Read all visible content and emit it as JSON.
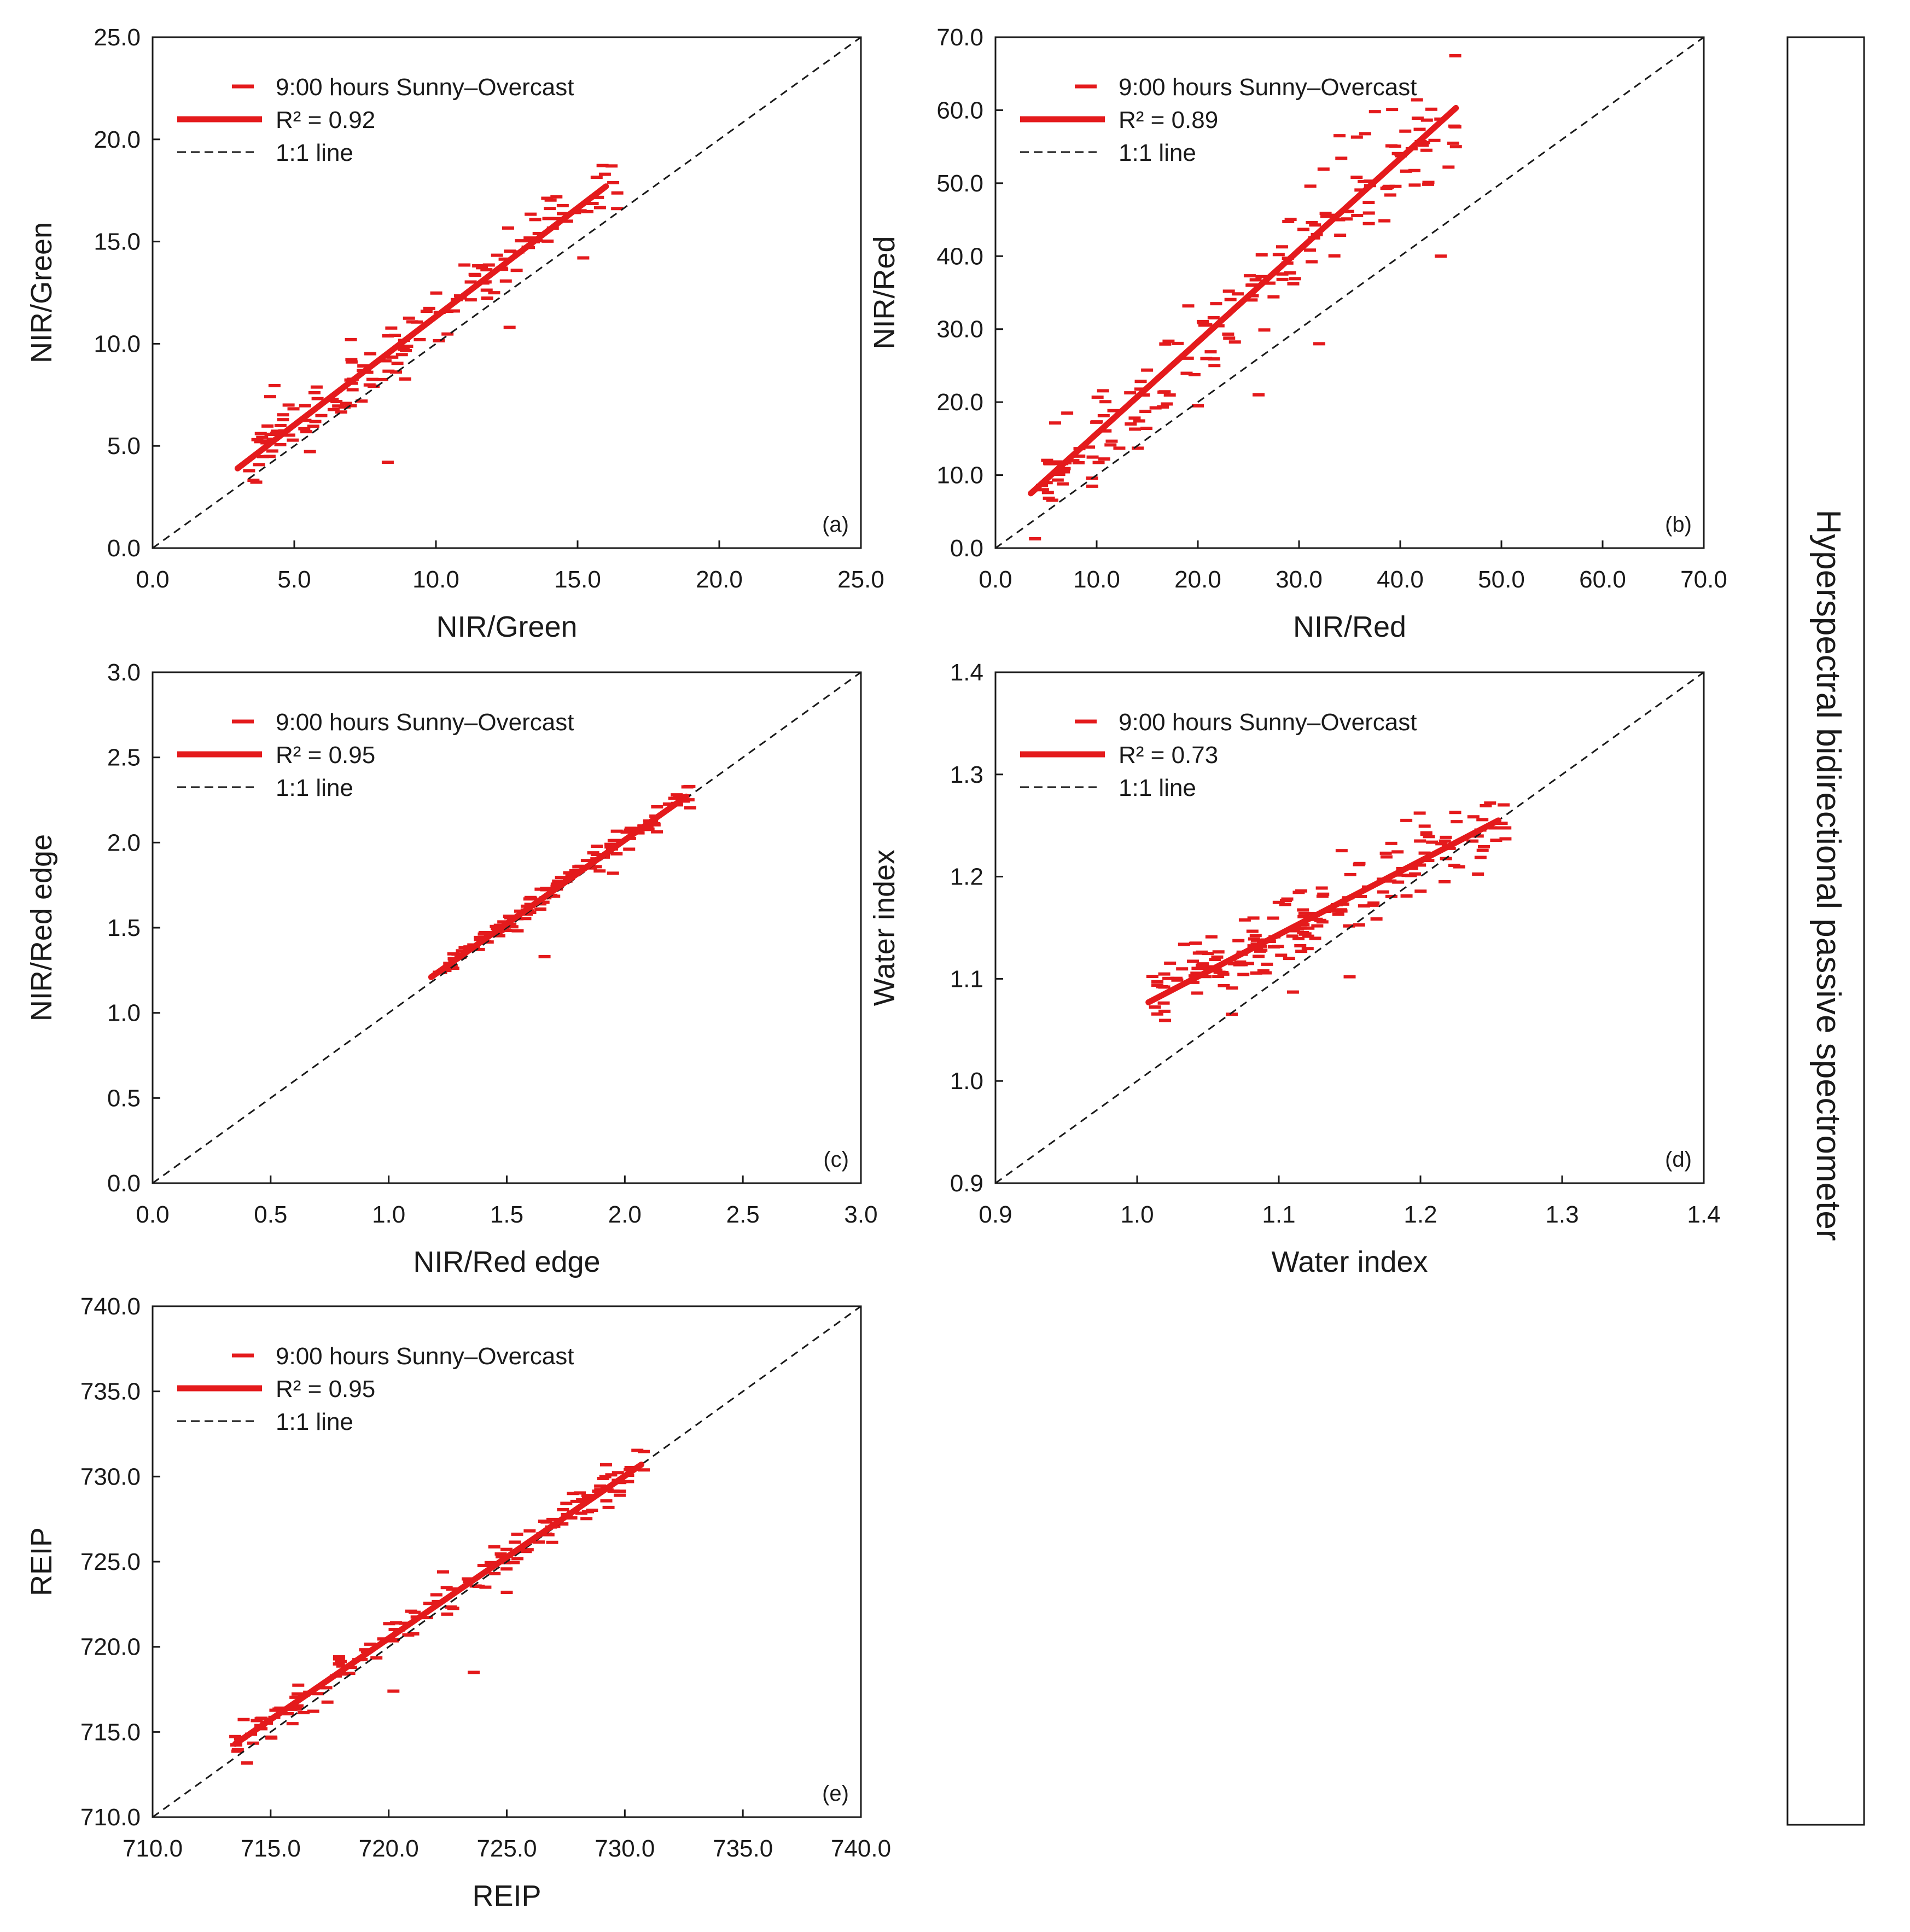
{
  "figure": {
    "side_title": "Hyperspectral bidirectional passive spectrometer"
  },
  "chart_data": [
    {
      "panel": "(a)",
      "type": "scatter",
      "xlabel": "NIR/Green",
      "ylabel": "NIR/Green",
      "xlim": [
        0,
        25
      ],
      "ylim": [
        0,
        25
      ],
      "xticks": [
        "0.0",
        "5.0",
        "10.0",
        "15.0",
        "20.0",
        "25.0"
      ],
      "yticks": [
        "0.0",
        "5.0",
        "10.0",
        "15.0",
        "20.0",
        "25.0"
      ],
      "legend": [
        "9:00 hours Sunny–Overcast",
        "R² = 0.92",
        "1:1 line"
      ],
      "fit_line": [
        [
          3.0,
          3.9
        ],
        [
          16.0,
          17.7
        ]
      ],
      "identity_line": [
        [
          0,
          0
        ],
        [
          25,
          25
        ]
      ],
      "scatter": {
        "n": 150,
        "x_range": [
          3.4,
          16.5
        ],
        "noise": 0.75,
        "seed": 11,
        "outliers": [
          [
            8.3,
            4.2
          ],
          [
            7.0,
            10.2
          ],
          [
            15.2,
            14.2
          ],
          [
            4.8,
            7.0
          ],
          [
            12.6,
            10.8
          ],
          [
            16.2,
            18.7
          ]
        ]
      }
    },
    {
      "panel": "(b)",
      "type": "scatter",
      "xlabel": "NIR/Red",
      "ylabel": "NIR/Red",
      "xlim": [
        0,
        70
      ],
      "ylim": [
        0,
        70
      ],
      "xticks": [
        "0.0",
        "10.0",
        "20.0",
        "30.0",
        "40.0",
        "50.0",
        "60.0",
        "70.0"
      ],
      "yticks": [
        "0.0",
        "10.0",
        "20.0",
        "30.0",
        "40.0",
        "50.0",
        "60.0",
        "70.0"
      ],
      "legend": [
        "9:00 hours Sunny–Overcast",
        "R² = 0.89",
        "1:1 line"
      ],
      "fit_line": [
        [
          3.5,
          7.5
        ],
        [
          45.5,
          60.3
        ]
      ],
      "identity_line": [
        [
          0,
          0
        ],
        [
          70,
          70
        ]
      ],
      "scatter": {
        "n": 170,
        "x_range": [
          3.5,
          45.5
        ],
        "noise": 3.2,
        "seed": 23,
        "outliers": [
          [
            37.5,
            59.8
          ],
          [
            45.5,
            55.0
          ],
          [
            44.0,
            40.0
          ],
          [
            32.0,
            28.0
          ],
          [
            26.0,
            21.0
          ],
          [
            40.0,
            54.0
          ],
          [
            34.0,
            56.5
          ],
          [
            20.0,
            19.5
          ]
        ]
      }
    },
    {
      "panel": "(c)",
      "type": "scatter",
      "xlabel": "NIR/Red edge",
      "ylabel": "NIR/Red edge",
      "xlim": [
        0,
        3
      ],
      "ylim": [
        0,
        3
      ],
      "xticks": [
        "0.0",
        "0.5",
        "1.0",
        "1.5",
        "2.0",
        "2.5",
        "3.0"
      ],
      "yticks": [
        "0.0",
        "0.5",
        "1.0",
        "1.5",
        "2.0",
        "2.5",
        "3.0"
      ],
      "legend": [
        "9:00 hours Sunny–Overcast",
        "R² = 0.95",
        "1:1 line"
      ],
      "fit_line": [
        [
          1.18,
          1.21
        ],
        [
          2.26,
          2.27
        ]
      ],
      "identity_line": [
        [
          0,
          0
        ],
        [
          3,
          3
        ]
      ],
      "scatter": {
        "n": 140,
        "x_range": [
          1.2,
          2.28
        ],
        "noise": 0.035,
        "seed": 37,
        "outliers": [
          [
            1.66,
            1.33
          ],
          [
            2.22,
            2.28
          ],
          [
            1.95,
            1.82
          ]
        ]
      }
    },
    {
      "panel": "(d)",
      "type": "scatter",
      "xlabel": "Water index",
      "ylabel": "Water index",
      "xlim": [
        0.9,
        1.4
      ],
      "ylim": [
        0.9,
        1.4
      ],
      "xticks": [
        "0.9",
        "1.0",
        "1.1",
        "1.2",
        "1.3",
        "1.4"
      ],
      "yticks": [
        "0.9",
        "1.0",
        "1.1",
        "1.2",
        "1.3",
        "1.4"
      ],
      "legend": [
        "9:00 hours Sunny–Overcast",
        "R² = 0.73",
        "1:1 line"
      ],
      "fit_line": [
        [
          1.008,
          1.077
        ],
        [
          1.255,
          1.255
        ]
      ],
      "identity_line": [
        [
          0.9,
          0.9
        ],
        [
          1.4,
          1.4
        ]
      ],
      "scatter": {
        "n": 190,
        "x_range": [
          1.01,
          1.26
        ],
        "noise": 0.017,
        "seed": 51,
        "outliers": [
          [
            1.19,
            1.255
          ],
          [
            1.15,
            1.102
          ],
          [
            1.26,
            1.237
          ],
          [
            1.11,
            1.087
          ]
        ]
      }
    },
    {
      "panel": "(e)",
      "type": "scatter",
      "xlabel": "REIP",
      "ylabel": "REIP",
      "xlim": [
        710,
        740
      ],
      "ylim": [
        710,
        740
      ],
      "xticks": [
        "710.0",
        "715.0",
        "720.0",
        "725.0",
        "730.0",
        "735.0",
        "740.0"
      ],
      "yticks": [
        "710.0",
        "715.0",
        "720.0",
        "725.0",
        "730.0",
        "735.0",
        "740.0"
      ],
      "legend": [
        "9:00 hours Sunny–Overcast",
        "R² = 0.95",
        "1:1 line"
      ],
      "fit_line": [
        [
          713.5,
          714.3
        ],
        [
          730.7,
          730.7
        ]
      ],
      "identity_line": [
        [
          710,
          710
        ],
        [
          740,
          740
        ]
      ],
      "scatter": {
        "n": 150,
        "x_range": [
          713.5,
          731.0
        ],
        "noise": 0.55,
        "seed": 67,
        "outliers": [
          [
            723.6,
            718.5
          ],
          [
            720.2,
            717.4
          ],
          [
            725.0,
            723.2
          ],
          [
            722.3,
            724.4
          ]
        ]
      }
    }
  ]
}
